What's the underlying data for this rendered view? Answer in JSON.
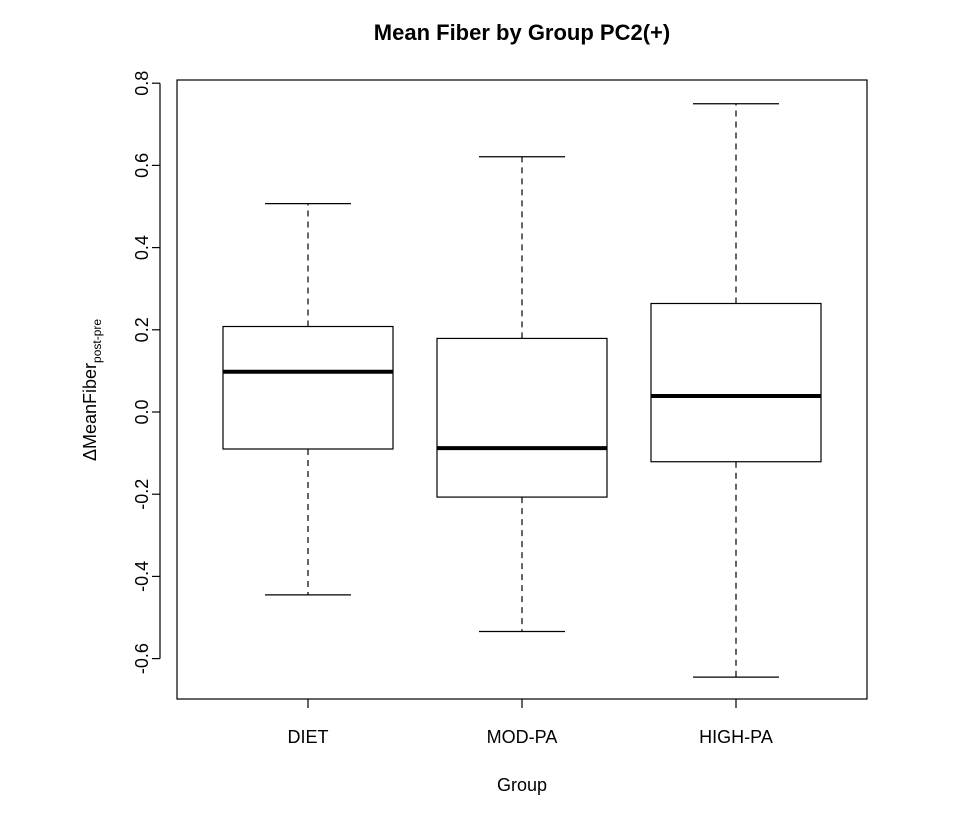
{
  "chart_data": {
    "type": "boxplot",
    "title": "Mean Fiber by Group PC2(+)",
    "xlabel": "Group",
    "ylabel": {
      "prefix": "Δ",
      "main": "MeanFiber",
      "subscript": "post-pre"
    },
    "categories": [
      "DIET",
      "MOD-PA",
      "HIGH-PA"
    ],
    "boxes": [
      {
        "category": "DIET",
        "whisker_low": -0.445,
        "q1": -0.09,
        "median": 0.098,
        "q3": 0.208,
        "whisker_high": 0.507
      },
      {
        "category": "MOD-PA",
        "whisker_low": -0.534,
        "q1": -0.207,
        "median": -0.088,
        "q3": 0.179,
        "whisker_high": 0.621
      },
      {
        "category": "HIGH-PA",
        "whisker_low": -0.645,
        "q1": -0.121,
        "median": 0.039,
        "q3": 0.264,
        "whisker_high": 0.75
      }
    ],
    "ylim": [
      -0.7,
      0.8
    ],
    "yticks": [
      -0.6,
      -0.4,
      -0.2,
      0.0,
      0.2,
      0.4,
      0.6,
      0.8
    ],
    "ytick_labels": [
      "-0.6",
      "-0.4",
      "-0.2",
      "0.0",
      "0.2",
      "0.4",
      "0.6",
      "0.8"
    ],
    "grid": false,
    "legend": "none",
    "colors": {
      "box_fill": "#ffffff",
      "stroke": "#000000"
    }
  }
}
